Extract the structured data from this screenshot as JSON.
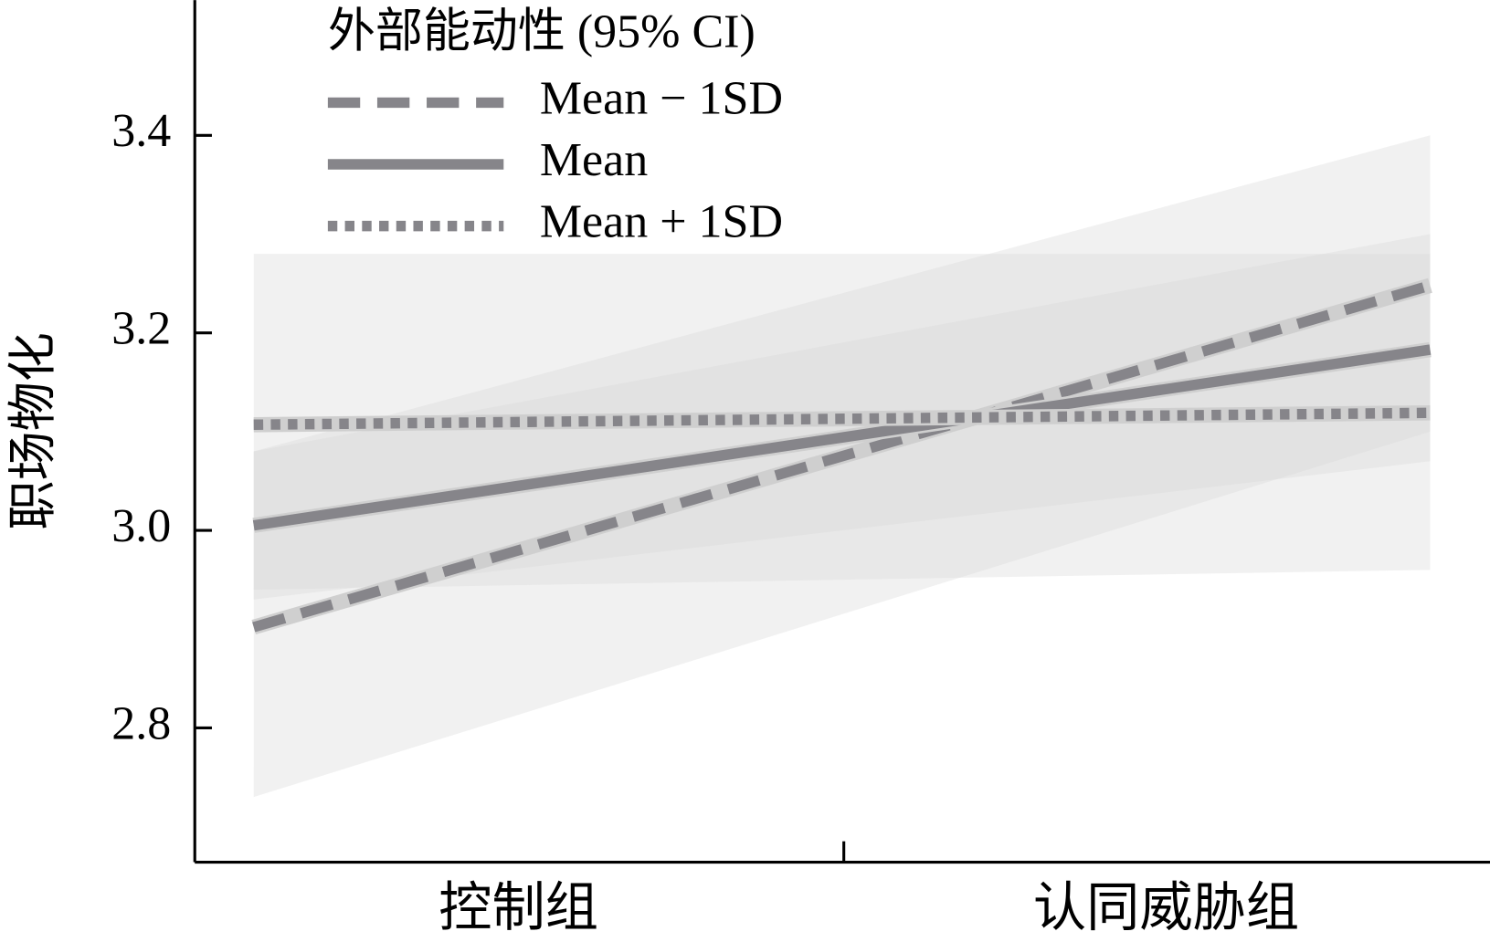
{
  "chart_data": {
    "type": "line",
    "y_label": "职场物化",
    "legend_title": "外部能动性 (95% CI)",
    "legend": "upper left",
    "categories": [
      "控制组",
      "认同威胁组"
    ],
    "ylim": [
      2.664,
      3.537
    ],
    "yticks": [
      2.8,
      {
        "value": 3,
        "label": "3.0"
      },
      3.2,
      3.4
    ],
    "series": [
      {
        "name": "Mean − 1SD",
        "color": "#86858a",
        "dash": "dashed",
        "values": [
          2.902,
          3.248
        ],
        "ci_lower": [
          2.73,
          3.1
        ],
        "ci_upper": [
          3.08,
          3.4
        ]
      },
      {
        "name": "Mean",
        "color": "#86858a",
        "dash": "solid",
        "values": [
          3.005,
          3.183
        ],
        "ci_lower": [
          2.93,
          3.07
        ],
        "ci_upper": [
          3.08,
          3.3
        ]
      },
      {
        "name": "Mean + 1SD",
        "color": "#86858a",
        "dash": "dotted",
        "values": [
          3.107,
          3.119
        ],
        "ci_lower": [
          2.94,
          2.96
        ],
        "ci_upper": [
          3.28,
          3.28
        ]
      }
    ]
  }
}
